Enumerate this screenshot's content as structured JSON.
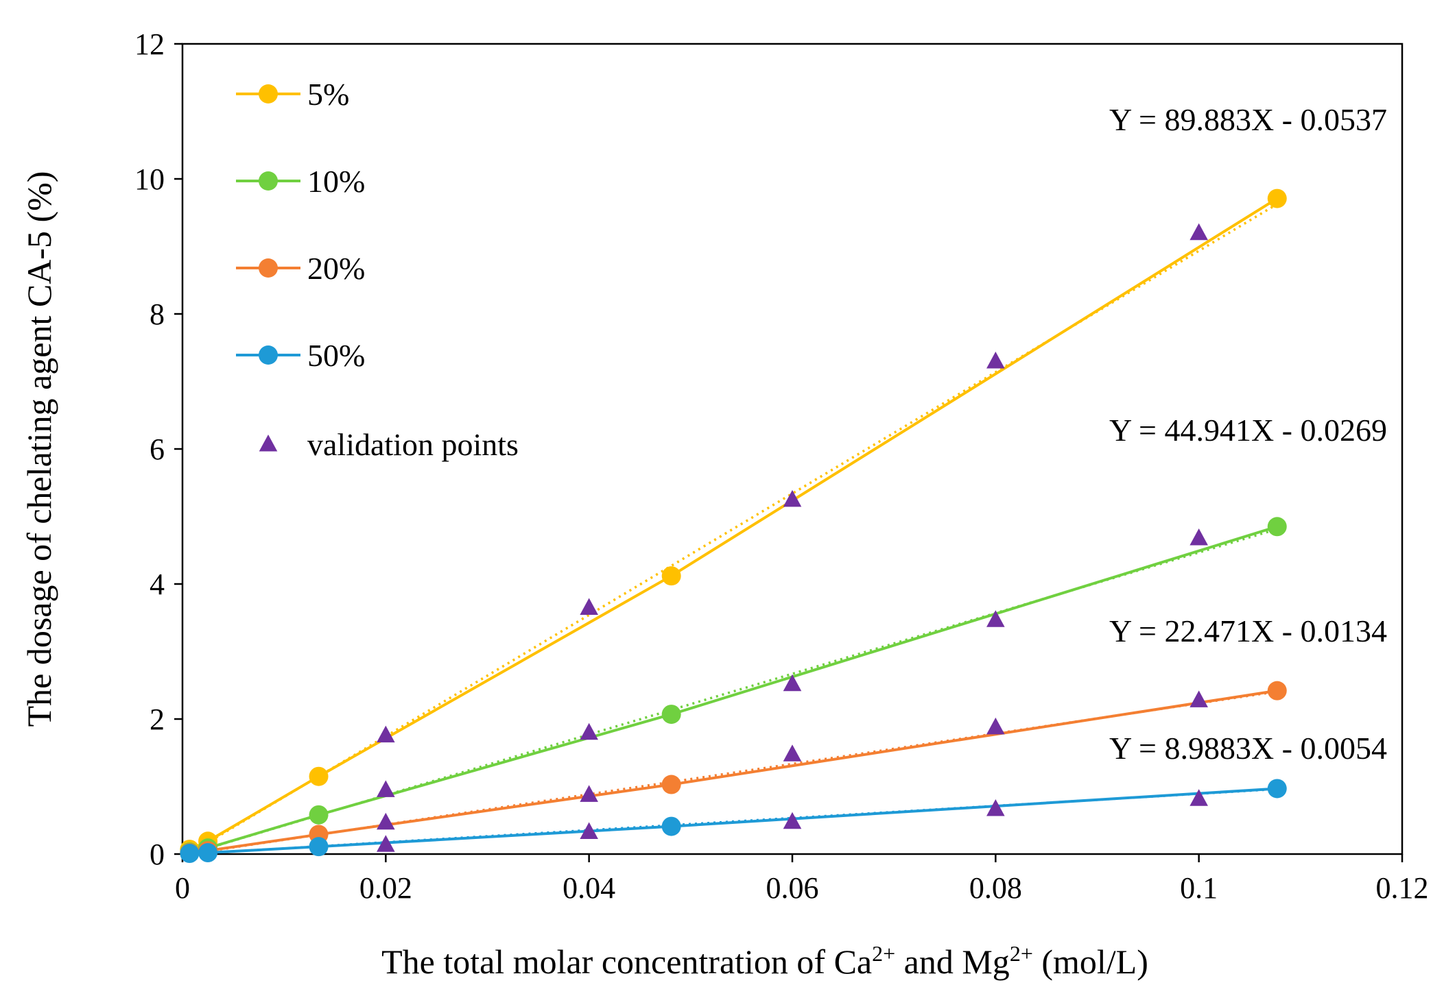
{
  "chart_data": {
    "type": "line",
    "xlabel": {
      "parts": [
        {
          "text": "The total molar concentration of Ca",
          "sup": false
        },
        {
          "text": "2+",
          "sup": true
        },
        {
          "text": " and Mg",
          "sup": false
        },
        {
          "text": "2+",
          "sup": true
        },
        {
          "text": " (mol/L)",
          "sup": false
        }
      ]
    },
    "ylabel": "The dosage of chelating agent CA-5 (%)",
    "xlim": [
      0,
      0.12
    ],
    "ylim": [
      0,
      12
    ],
    "xticks": [
      {
        "value": 0,
        "label": "0"
      },
      {
        "value": 0.02,
        "label": "0.02"
      },
      {
        "value": 0.04,
        "label": "0.04"
      },
      {
        "value": 0.06,
        "label": "0.06"
      },
      {
        "value": 0.08,
        "label": "0.08"
      },
      {
        "value": 0.1,
        "label": "0.1"
      },
      {
        "value": 0.12,
        "label": "0.12"
      }
    ],
    "yticks": [
      {
        "value": 0,
        "label": "0"
      },
      {
        "value": 2,
        "label": "2"
      },
      {
        "value": 4,
        "label": "4"
      },
      {
        "value": 6,
        "label": "6"
      },
      {
        "value": 8,
        "label": "8"
      },
      {
        "value": 10,
        "label": "10"
      },
      {
        "value": 12,
        "label": "12"
      }
    ],
    "grid": false,
    "legend_position": "top-left",
    "series": [
      {
        "name": "5%",
        "color": "#FFC000",
        "x": [
          0.0007,
          0.0025,
          0.0134,
          0.0481,
          0.1077
        ],
        "y": [
          0.07,
          0.19,
          1.15,
          4.12,
          9.71
        ],
        "trend": {
          "slope": 89.883,
          "intercept": -0.0537,
          "equation": "Y = 89.883X - 0.0537"
        }
      },
      {
        "name": "10%",
        "color": "#70D040",
        "x": [
          0.0007,
          0.0025,
          0.0134,
          0.0481,
          0.1077
        ],
        "y": [
          0.03,
          0.09,
          0.58,
          2.07,
          4.85
        ],
        "trend": {
          "slope": 44.941,
          "intercept": -0.0269,
          "equation": "Y = 44.941X - 0.0269"
        }
      },
      {
        "name": "20%",
        "color": "#F47F32",
        "x": [
          0.0007,
          0.0025,
          0.0134,
          0.0481,
          0.1077
        ],
        "y": [
          0.02,
          0.05,
          0.29,
          1.03,
          2.42
        ],
        "trend": {
          "slope": 22.471,
          "intercept": -0.0134,
          "equation": "Y = 22.471X - 0.0134"
        }
      },
      {
        "name": "50%",
        "color": "#1E9AD6",
        "x": [
          0.0007,
          0.0025,
          0.0134,
          0.0481,
          0.1077
        ],
        "y": [
          0.01,
          0.02,
          0.11,
          0.41,
          0.97
        ],
        "trend": {
          "slope": 8.9883,
          "intercept": -0.0054,
          "equation": "Y = 8.9883X - 0.0054"
        }
      }
    ],
    "validation": {
      "name": "validation points",
      "color": "#7030A0",
      "x": [
        0.02,
        0.04,
        0.06,
        0.08,
        0.1,
        0.02,
        0.04,
        0.06,
        0.08,
        0.1,
        0.02,
        0.04,
        0.06,
        0.08,
        0.1,
        0.02,
        0.04,
        0.06,
        0.08,
        0.1
      ],
      "y": [
        1.76,
        3.65,
        5.25,
        7.3,
        9.2,
        0.95,
        1.8,
        2.52,
        3.47,
        4.68,
        0.47,
        0.88,
        1.48,
        1.88,
        2.28,
        0.14,
        0.33,
        0.48,
        0.67,
        0.82
      ]
    }
  }
}
